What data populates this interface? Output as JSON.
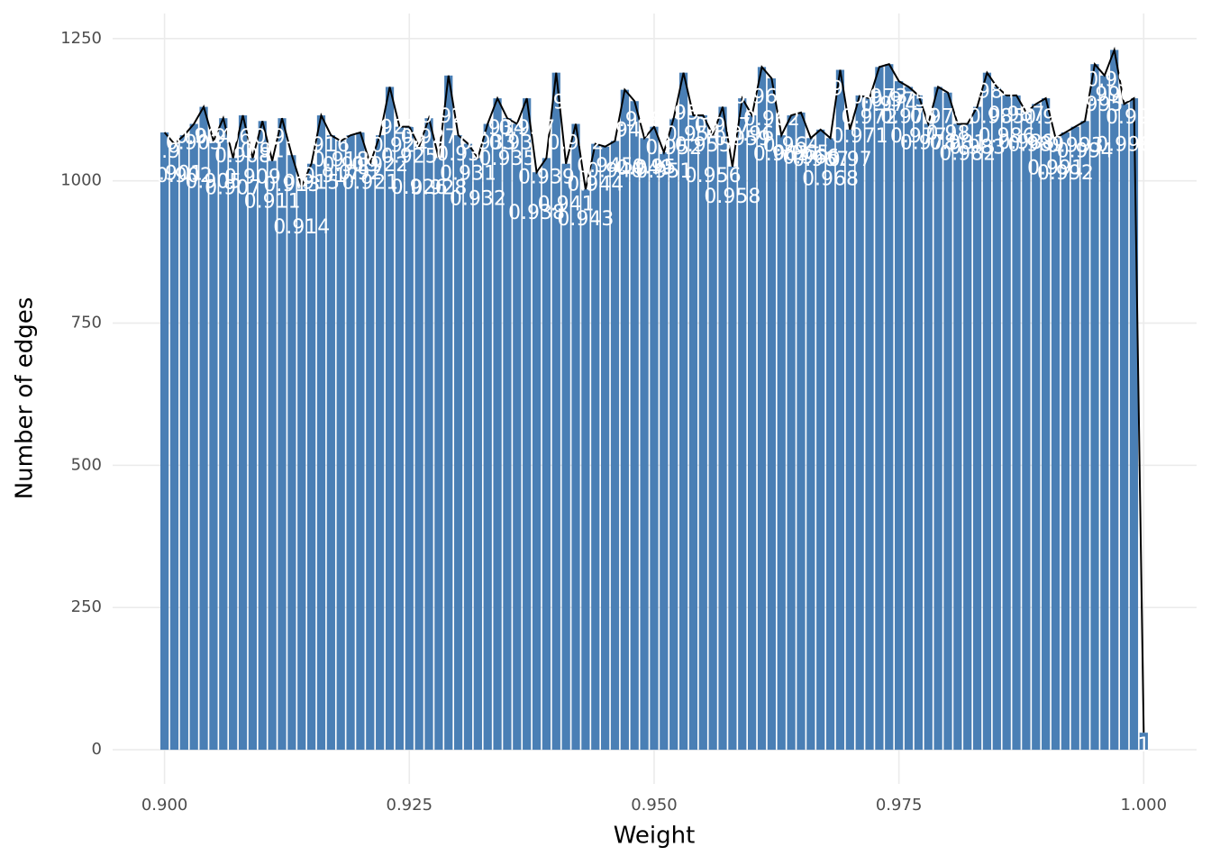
{
  "chart_data": {
    "type": "bar",
    "xlabel": "Weight",
    "ylabel": "Number of edges",
    "x": [
      0.9,
      0.901,
      0.902,
      0.903,
      0.904,
      0.905,
      0.906,
      0.907,
      0.908,
      0.909,
      0.91,
      0.911,
      0.912,
      0.913,
      0.914,
      0.915,
      0.916,
      0.917,
      0.918,
      0.919,
      0.92,
      0.921,
      0.922,
      0.923,
      0.924,
      0.925,
      0.926,
      0.927,
      0.928,
      0.929,
      0.93,
      0.931,
      0.932,
      0.933,
      0.934,
      0.935,
      0.936,
      0.937,
      0.938,
      0.939,
      0.94,
      0.941,
      0.942,
      0.943,
      0.944,
      0.945,
      0.946,
      0.947,
      0.948,
      0.949,
      0.95,
      0.951,
      0.952,
      0.953,
      0.954,
      0.955,
      0.956,
      0.957,
      0.958,
      0.959,
      0.96,
      0.961,
      0.962,
      0.963,
      0.964,
      0.965,
      0.966,
      0.967,
      0.968,
      0.969,
      0.97,
      0.971,
      0.972,
      0.973,
      0.974,
      0.975,
      0.976,
      0.977,
      0.978,
      0.979,
      0.98,
      0.981,
      0.982,
      0.983,
      0.984,
      0.985,
      0.986,
      0.987,
      0.988,
      0.989,
      0.99,
      0.991,
      0.992,
      0.993,
      0.994,
      0.995,
      0.996,
      0.997,
      0.998,
      0.999,
      1
    ],
    "values": [
      1085,
      1065,
      1080,
      1100,
      1130,
      1070,
      1110,
      1040,
      1115,
      1040,
      1105,
      1035,
      1110,
      1045,
      990,
      1030,
      1115,
      1080,
      1070,
      1080,
      1085,
      1030,
      1080,
      1165,
      1095,
      1095,
      1060,
      1110,
      1040,
      1185,
      1080,
      1065,
      1040,
      1100,
      1145,
      1110,
      1100,
      1145,
      1015,
      1040,
      1190,
      1030,
      1100,
      985,
      1065,
      1060,
      1070,
      1160,
      1140,
      1075,
      1095,
      1050,
      1110,
      1190,
      1115,
      1115,
      1080,
      1130,
      1025,
      1145,
      1115,
      1200,
      1180,
      1080,
      1115,
      1120,
      1075,
      1090,
      1075,
      1195,
      1090,
      1150,
      1145,
      1200,
      1205,
      1175,
      1165,
      1150,
      1100,
      1165,
      1155,
      1100,
      1100,
      1130,
      1190,
      1165,
      1150,
      1150,
      1120,
      1135,
      1145,
      1075,
      1085,
      1095,
      1105,
      1205,
      1185,
      1230,
      1135,
      1145,
      30
    ],
    "color": "#4a7fb5",
    "line_color": "#000000",
    "xlim": [
      0.8947,
      1.0054
    ],
    "ylim": [
      -60,
      1294
    ],
    "xticks": [
      {
        "value": 0.9,
        "label": "0.900"
      },
      0.925,
      {
        "value": 0.95,
        "label": "0.950"
      },
      0.975,
      {
        "value": 1,
        "label": "1.000"
      }
    ],
    "yticks": [
      0,
      250,
      500,
      750,
      1000,
      1250
    ],
    "grid": true
  }
}
